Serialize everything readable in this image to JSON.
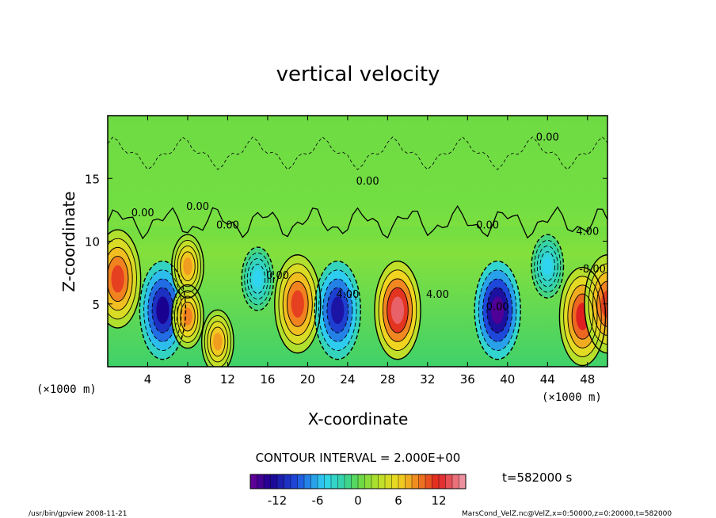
{
  "chart_data": {
    "type": "heatmap",
    "title": "vertical velocity",
    "xlabel": "X-coordinate",
    "ylabel": "Z-coordinate",
    "x_unit": "(×1000 m)",
    "z_unit": "(×1000 m)",
    "xlim": [
      0,
      50
    ],
    "ylim": [
      0,
      20
    ],
    "x_ticks": [
      "4",
      "8",
      "12",
      "16",
      "20",
      "24",
      "28",
      "32",
      "36",
      "40",
      "44",
      "48"
    ],
    "y_ticks": [
      "5",
      "10",
      "15"
    ],
    "contour_interval_text": "CONTOUR INTERVAL = 2.000E+00",
    "contour_labels": [
      "0.00",
      "0.00",
      "0.00",
      "0.00",
      "0.00",
      "0.00",
      "0.00",
      "4.00",
      "4.00",
      "4.00",
      "-8.00",
      "0.00"
    ],
    "features": [
      {
        "x": 1,
        "z": 7,
        "value": 11
      },
      {
        "x": 5.5,
        "z": 4.5,
        "value": -13
      },
      {
        "x": 8,
        "z": 8,
        "value": 8
      },
      {
        "x": 8,
        "z": 4,
        "value": 9
      },
      {
        "x": 11,
        "z": 2,
        "value": 8
      },
      {
        "x": 15,
        "z": 7,
        "value": -5
      },
      {
        "x": 19,
        "z": 5,
        "value": 11
      },
      {
        "x": 23,
        "z": 4.5,
        "value": -12
      },
      {
        "x": 29,
        "z": 4.5,
        "value": 14
      },
      {
        "x": 39,
        "z": 4.5,
        "value": -15
      },
      {
        "x": 44,
        "z": 8,
        "value": -5
      },
      {
        "x": 47.5,
        "z": 4,
        "value": 12
      },
      {
        "x": 50,
        "z": 5,
        "value": 11
      }
    ],
    "colorbar": {
      "range": [
        -16,
        16
      ],
      "tick_labels": [
        "-12",
        "-6",
        "0",
        "6",
        "12"
      ],
      "tick_values": [
        -12,
        -6,
        0,
        6,
        12
      ]
    },
    "time_label": "t=582000 s",
    "footer_left": "/usr/bin/gpview  2008-11-21",
    "footer_right": "MarsCond_VelZ.nc@VelZ,x=0:50000,z=0:20000,t=582000"
  }
}
